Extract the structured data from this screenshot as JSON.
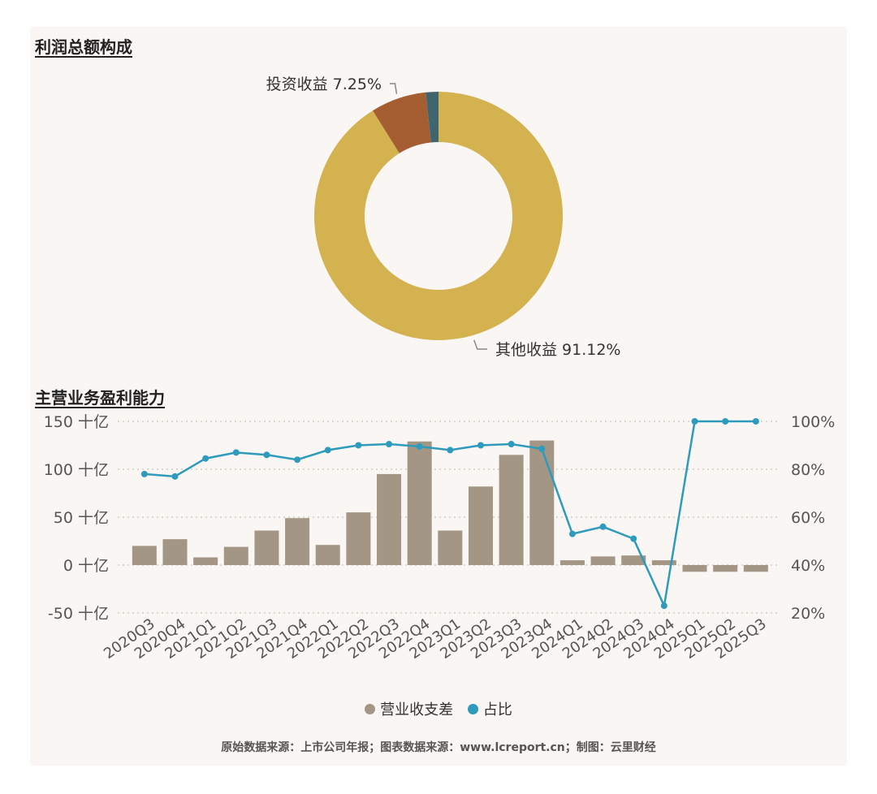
{
  "colors": {
    "panel": "#f9f6f3",
    "bar": "#a39685",
    "line": "#2e9bbd",
    "grid": "#c8c2bb",
    "other": "#d3b24f",
    "invest": "#a55e32",
    "remainder": "#3f6570"
  },
  "chart_data": [
    {
      "type": "pie",
      "title": "利润总额构成",
      "donut": true,
      "slices": [
        {
          "label": "其他收益",
          "value": 91.12,
          "display": "其他收益 91.12%",
          "color": "#d3b24f"
        },
        {
          "label": "投资收益",
          "value": 7.25,
          "display": "投资收益 7.25%",
          "color": "#a55e32"
        },
        {
          "label": "",
          "value": 1.63,
          "display": "",
          "color": "#3f6570"
        }
      ]
    },
    {
      "type": "bar",
      "title": "主营业务盈利能力",
      "categories": [
        "2020Q3",
        "2020Q4",
        "2021Q1",
        "2021Q2",
        "2021Q3",
        "2021Q4",
        "2022Q1",
        "2022Q2",
        "2022Q3",
        "2022Q4",
        "2023Q1",
        "2023Q2",
        "2023Q3",
        "2023Q4",
        "2024Q1",
        "2024Q2",
        "2024Q3",
        "2024Q4",
        "2025Q1",
        "2025Q2",
        "2025Q3"
      ],
      "series": [
        {
          "name": "营业收支差",
          "type": "bar",
          "axis": "left",
          "color": "#a39685",
          "values": [
            20,
            27,
            8,
            19,
            36,
            49,
            21,
            55,
            95,
            129,
            36,
            82,
            115,
            130,
            5,
            9,
            10,
            5,
            -7,
            -7,
            -7
          ]
        },
        {
          "name": "占比",
          "type": "line",
          "axis": "right",
          "color": "#2e9bbd",
          "values": [
            78,
            77,
            84.5,
            87,
            86,
            84,
            88,
            90,
            90.5,
            89.5,
            88,
            90,
            90.5,
            88.5,
            53,
            56,
            51,
            23,
            100,
            100,
            100
          ]
        }
      ],
      "y_left": {
        "min": -50,
        "max": 150,
        "ticks": [
          150,
          100,
          50,
          0,
          -50
        ],
        "tick_labels": [
          "150 十亿",
          "100 十亿",
          "50 十亿",
          "0 十亿",
          "-50 十亿"
        ]
      },
      "y_right": {
        "min": 20,
        "max": 100,
        "ticks": [
          100,
          80,
          60,
          40,
          20
        ],
        "tick_labels": [
          "100%",
          "80%",
          "60%",
          "40%",
          "20%"
        ]
      },
      "grid": true,
      "legend_position": "bottom"
    }
  ],
  "legend": {
    "bar_label": "营业收支差",
    "line_label": "占比"
  },
  "footer": "原始数据来源：上市公司年报；图表数据来源：www.lcreport.cn；制图：云里财经"
}
